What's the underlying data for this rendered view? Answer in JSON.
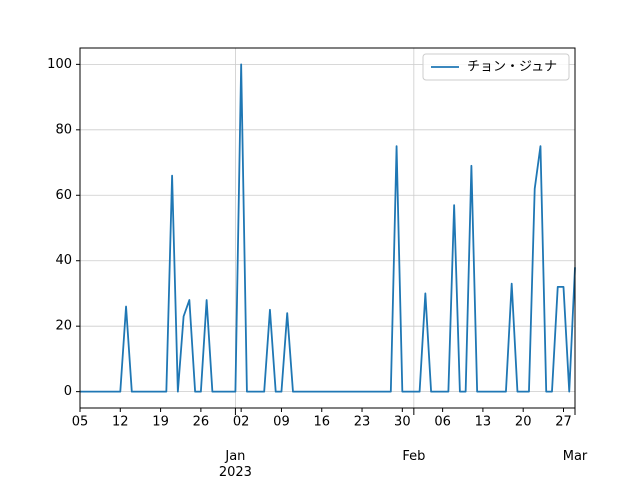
{
  "chart_data": {
    "type": "line",
    "x": [
      "2022-12-05",
      "2022-12-06",
      "2022-12-07",
      "2022-12-08",
      "2022-12-09",
      "2022-12-10",
      "2022-12-11",
      "2022-12-12",
      "2022-12-13",
      "2022-12-14",
      "2022-12-15",
      "2022-12-16",
      "2022-12-17",
      "2022-12-18",
      "2022-12-19",
      "2022-12-20",
      "2022-12-21",
      "2022-12-22",
      "2022-12-23",
      "2022-12-24",
      "2022-12-25",
      "2022-12-26",
      "2022-12-27",
      "2022-12-28",
      "2022-12-29",
      "2022-12-30",
      "2022-12-31",
      "2023-01-01",
      "2023-01-02",
      "2023-01-03",
      "2023-01-04",
      "2023-01-05",
      "2023-01-06",
      "2023-01-07",
      "2023-01-08",
      "2023-01-09",
      "2023-01-10",
      "2023-01-11",
      "2023-01-12",
      "2023-01-13",
      "2023-01-14",
      "2023-01-15",
      "2023-01-16",
      "2023-01-17",
      "2023-01-18",
      "2023-01-19",
      "2023-01-20",
      "2023-01-21",
      "2023-01-22",
      "2023-01-23",
      "2023-01-24",
      "2023-01-25",
      "2023-01-26",
      "2023-01-27",
      "2023-01-28",
      "2023-01-29",
      "2023-01-30",
      "2023-01-31",
      "2023-02-01",
      "2023-02-02",
      "2023-02-03",
      "2023-02-04",
      "2023-02-05",
      "2023-02-06",
      "2023-02-07",
      "2023-02-08",
      "2023-02-09",
      "2023-02-10",
      "2023-02-11",
      "2023-02-12",
      "2023-02-13",
      "2023-02-14",
      "2023-02-15",
      "2023-02-16",
      "2023-02-17",
      "2023-02-18",
      "2023-02-19",
      "2023-02-20",
      "2023-02-21",
      "2023-02-22",
      "2023-02-23",
      "2023-02-24",
      "2023-02-25",
      "2023-02-26",
      "2023-02-27",
      "2023-02-28",
      "2023-03-01"
    ],
    "series": [
      {
        "name": "チョン・ジュナ",
        "color": "#1f77b4",
        "values": [
          0,
          0,
          0,
          0,
          0,
          0,
          0,
          0,
          26,
          0,
          0,
          0,
          0,
          0,
          0,
          0,
          66,
          0,
          23,
          28,
          0,
          0,
          28,
          0,
          0,
          0,
          0,
          0,
          100,
          0,
          0,
          0,
          0,
          25,
          0,
          0,
          24,
          0,
          0,
          0,
          0,
          0,
          0,
          0,
          0,
          0,
          0,
          0,
          0,
          0,
          0,
          0,
          0,
          0,
          0,
          75,
          0,
          0,
          0,
          0,
          30,
          0,
          0,
          0,
          0,
          57,
          0,
          0,
          69,
          0,
          0,
          0,
          0,
          0,
          0,
          33,
          0,
          0,
          0,
          62,
          75,
          0,
          0,
          32,
          32,
          0,
          38
        ]
      }
    ],
    "xlim": [
      "2022-12-05",
      "2023-03-01"
    ],
    "xticks": [
      {
        "value": "2023-01-01",
        "label": "Jan\n2023"
      },
      {
        "value": "2023-02-01",
        "label": "Feb"
      },
      {
        "value": "2023-03-01",
        "label": "Mar"
      }
    ],
    "xticks_minor": [
      {
        "value": "2022-12-05",
        "label": "05"
      },
      {
        "value": "2022-12-12",
        "label": "12"
      },
      {
        "value": "2022-12-19",
        "label": "19"
      },
      {
        "value": "2022-12-26",
        "label": "26"
      },
      {
        "value": "2023-01-02",
        "label": "02"
      },
      {
        "value": "2023-01-09",
        "label": "09"
      },
      {
        "value": "2023-01-16",
        "label": "16"
      },
      {
        "value": "2023-01-23",
        "label": "23"
      },
      {
        "value": "2023-01-30",
        "label": "30"
      },
      {
        "value": "2023-02-06",
        "label": "06"
      },
      {
        "value": "2023-02-13",
        "label": "13"
      },
      {
        "value": "2023-02-20",
        "label": "20"
      },
      {
        "value": "2023-02-27",
        "label": "27"
      }
    ],
    "ylim": [
      -5,
      105
    ],
    "yticks": [
      0,
      20,
      40,
      60,
      80,
      100
    ],
    "grid": true,
    "legend": "upper right"
  }
}
